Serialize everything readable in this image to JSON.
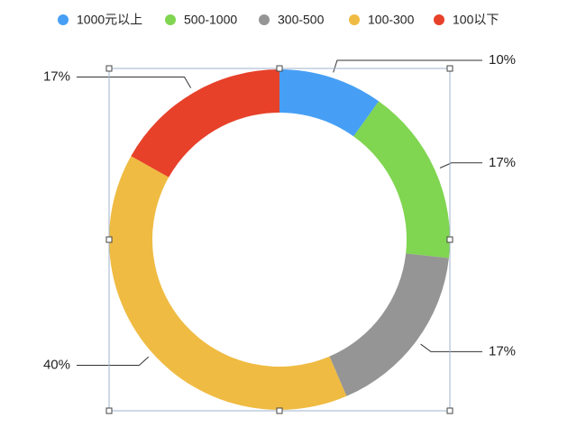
{
  "chart_data": {
    "type": "donut",
    "categories": [
      "1000元以上",
      "500-1000",
      "300-500",
      "100-300",
      "100以下"
    ],
    "values": [
      10,
      17,
      17,
      40,
      17
    ],
    "value_labels": [
      "10%",
      "17%",
      "17%",
      "40%",
      "17%"
    ],
    "colors": [
      "#469ff4",
      "#80d551",
      "#959595",
      "#efbb42",
      "#e7412a"
    ]
  }
}
